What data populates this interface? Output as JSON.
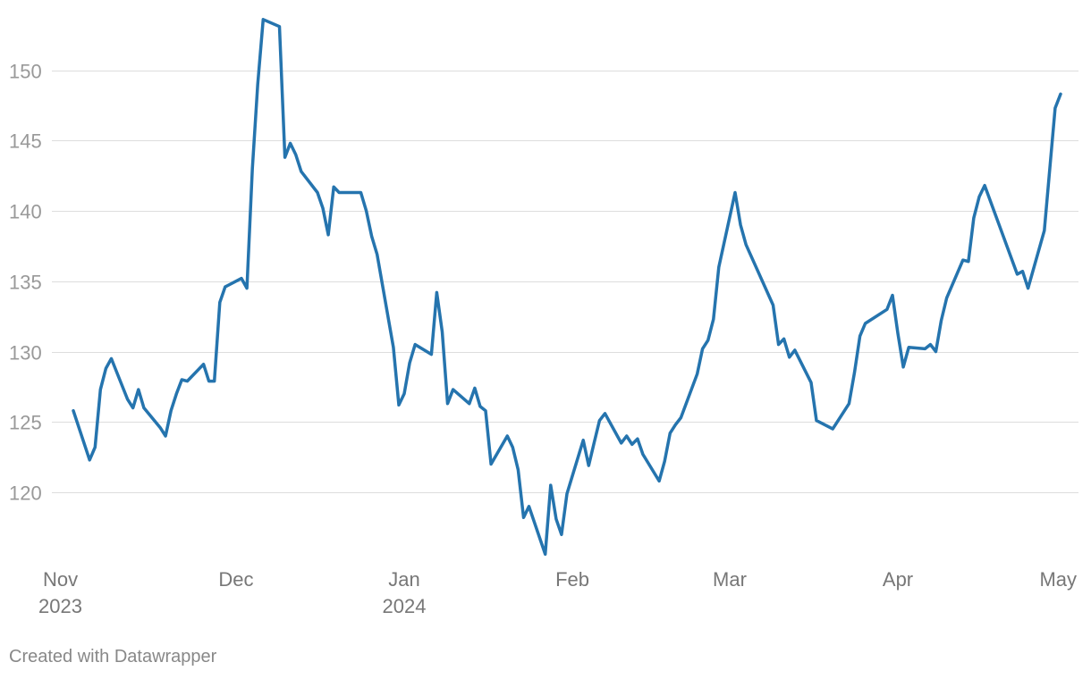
{
  "chart_data": {
    "type": "line",
    "x_range": [
      "2023-11-01",
      "2024-05-01"
    ],
    "ylim": [
      115,
      154
    ],
    "grid": true,
    "y_ticks": [
      120,
      125,
      130,
      135,
      140,
      145,
      150
    ],
    "x_ticks": [
      {
        "date": "2023-11-01",
        "label": "Nov",
        "year": "2023"
      },
      {
        "date": "2023-12-01",
        "label": "Dec",
        "year": ""
      },
      {
        "date": "2024-01-01",
        "label": "Jan",
        "year": "2024"
      },
      {
        "date": "2024-02-01",
        "label": "Feb",
        "year": ""
      },
      {
        "date": "2024-03-01",
        "label": "Mar",
        "year": ""
      },
      {
        "date": "2024-04-01",
        "label": "Apr",
        "year": ""
      },
      {
        "date": "2024-05-01",
        "label": "May",
        "year": ""
      }
    ],
    "color": "#2574ae",
    "series": [
      {
        "points": [
          [
            "2023-11-01",
            125.8
          ],
          [
            "2023-11-04",
            122.3
          ],
          [
            "2023-11-05",
            123.2
          ],
          [
            "2023-11-06",
            127.3
          ],
          [
            "2023-11-07",
            128.8
          ],
          [
            "2023-11-08",
            129.5
          ],
          [
            "2023-11-11",
            126.6
          ],
          [
            "2023-11-12",
            126.0
          ],
          [
            "2023-11-13",
            127.3
          ],
          [
            "2023-11-14",
            126.0
          ],
          [
            "2023-11-17",
            124.6
          ],
          [
            "2023-11-18",
            124.0
          ],
          [
            "2023-11-19",
            125.8
          ],
          [
            "2023-11-20",
            127.0
          ],
          [
            "2023-11-21",
            128.0
          ],
          [
            "2023-11-22",
            127.9
          ],
          [
            "2023-11-25",
            129.1
          ],
          [
            "2023-11-26",
            127.9
          ],
          [
            "2023-11-27",
            127.9
          ],
          [
            "2023-11-28",
            133.5
          ],
          [
            "2023-11-29",
            134.6
          ],
          [
            "2023-12-02",
            135.2
          ],
          [
            "2023-12-03",
            134.5
          ],
          [
            "2023-12-04",
            143.0
          ],
          [
            "2023-12-05",
            149.0
          ],
          [
            "2023-12-06",
            153.6
          ],
          [
            "2023-12-09",
            153.1
          ],
          [
            "2023-12-10",
            143.8
          ],
          [
            "2023-12-11",
            144.8
          ],
          [
            "2023-12-12",
            144.0
          ],
          [
            "2023-12-13",
            142.8
          ],
          [
            "2023-12-16",
            141.3
          ],
          [
            "2023-12-17",
            140.2
          ],
          [
            "2023-12-18",
            138.3
          ],
          [
            "2023-12-19",
            141.7
          ],
          [
            "2023-12-20",
            141.3
          ],
          [
            "2023-12-23",
            141.3
          ],
          [
            "2023-12-24",
            141.3
          ],
          [
            "2023-12-25",
            140.0
          ],
          [
            "2023-12-26",
            138.2
          ],
          [
            "2023-12-27",
            136.9
          ],
          [
            "2023-12-30",
            130.3
          ],
          [
            "2023-12-31",
            126.2
          ],
          [
            "2024-01-01",
            127.0
          ],
          [
            "2024-01-02",
            129.2
          ],
          [
            "2024-01-03",
            130.5
          ],
          [
            "2024-01-06",
            129.8
          ],
          [
            "2024-01-07",
            134.2
          ],
          [
            "2024-01-08",
            131.4
          ],
          [
            "2024-01-09",
            126.3
          ],
          [
            "2024-01-10",
            127.3
          ],
          [
            "2024-01-13",
            126.3
          ],
          [
            "2024-01-14",
            127.4
          ],
          [
            "2024-01-15",
            126.1
          ],
          [
            "2024-01-16",
            125.8
          ],
          [
            "2024-01-17",
            122.0
          ],
          [
            "2024-01-20",
            124.0
          ],
          [
            "2024-01-21",
            123.2
          ],
          [
            "2024-01-22",
            121.6
          ],
          [
            "2024-01-23",
            118.2
          ],
          [
            "2024-01-24",
            119.0
          ],
          [
            "2024-01-27",
            115.6
          ],
          [
            "2024-01-28",
            120.5
          ],
          [
            "2024-01-29",
            118.1
          ],
          [
            "2024-01-30",
            117.0
          ],
          [
            "2024-01-31",
            119.9
          ],
          [
            "2024-02-03",
            123.7
          ],
          [
            "2024-02-04",
            121.9
          ],
          [
            "2024-02-05",
            123.5
          ],
          [
            "2024-02-06",
            125.1
          ],
          [
            "2024-02-07",
            125.6
          ],
          [
            "2024-02-10",
            123.5
          ],
          [
            "2024-02-11",
            124.0
          ],
          [
            "2024-02-12",
            123.4
          ],
          [
            "2024-02-13",
            123.8
          ],
          [
            "2024-02-14",
            122.7
          ],
          [
            "2024-02-17",
            120.8
          ],
          [
            "2024-02-18",
            122.2
          ],
          [
            "2024-02-19",
            124.2
          ],
          [
            "2024-02-20",
            124.8
          ],
          [
            "2024-02-21",
            125.3
          ],
          [
            "2024-02-24",
            128.4
          ],
          [
            "2024-02-25",
            130.2
          ],
          [
            "2024-02-26",
            130.8
          ],
          [
            "2024-02-27",
            132.3
          ],
          [
            "2024-02-28",
            136.0
          ],
          [
            "2024-03-02",
            141.3
          ],
          [
            "2024-03-03",
            139.0
          ],
          [
            "2024-03-04",
            137.6
          ],
          [
            "2024-03-09",
            133.3
          ],
          [
            "2024-03-10",
            130.5
          ],
          [
            "2024-03-11",
            130.9
          ],
          [
            "2024-03-12",
            129.6
          ],
          [
            "2024-03-13",
            130.1
          ],
          [
            "2024-03-16",
            127.8
          ],
          [
            "2024-03-17",
            125.1
          ],
          [
            "2024-03-20",
            124.5
          ],
          [
            "2024-03-23",
            126.3
          ],
          [
            "2024-03-24",
            128.5
          ],
          [
            "2024-03-25",
            131.1
          ],
          [
            "2024-03-26",
            132.0
          ],
          [
            "2024-03-30",
            133.0
          ],
          [
            "2024-03-31",
            134.0
          ],
          [
            "2024-04-01",
            131.3
          ],
          [
            "2024-04-02",
            128.9
          ],
          [
            "2024-04-03",
            130.3
          ],
          [
            "2024-04-06",
            130.2
          ],
          [
            "2024-04-07",
            130.5
          ],
          [
            "2024-04-08",
            130.0
          ],
          [
            "2024-04-09",
            132.2
          ],
          [
            "2024-04-10",
            133.8
          ],
          [
            "2024-04-13",
            136.5
          ],
          [
            "2024-04-14",
            136.4
          ],
          [
            "2024-04-15",
            139.5
          ],
          [
            "2024-04-16",
            141.0
          ],
          [
            "2024-04-17",
            141.8
          ],
          [
            "2024-04-23",
            135.5
          ],
          [
            "2024-04-24",
            135.7
          ],
          [
            "2024-04-25",
            134.5
          ],
          [
            "2024-04-28",
            138.6
          ],
          [
            "2024-04-30",
            147.3
          ],
          [
            "2024-05-01",
            148.3
          ]
        ]
      }
    ]
  },
  "footer": {
    "credit": "Created with Datawrapper"
  }
}
